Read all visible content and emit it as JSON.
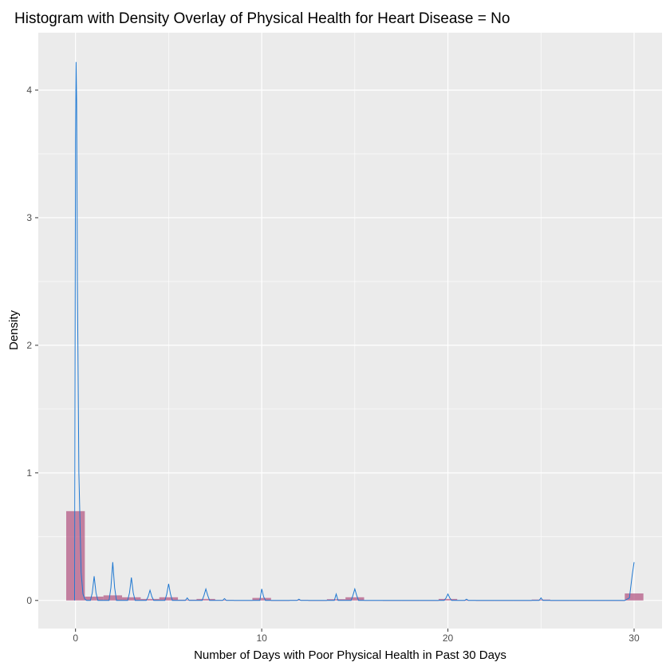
{
  "chart_data": {
    "type": "bar",
    "title": "Histogram with Density Overlay of Physical Health for Heart Disease = No",
    "xlabel": "Number of Days with Poor Physical Health in Past 30 Days",
    "ylabel": "Density",
    "xlim": [
      -2.0,
      31.5
    ],
    "ylim": [
      -0.22,
      4.45
    ],
    "x_ticks": [
      0,
      10,
      20,
      30
    ],
    "y_ticks": [
      0,
      1,
      2,
      3,
      4
    ],
    "grid": true,
    "legend": "none",
    "colors": {
      "panel": "#ebebeb",
      "grid_major": "#ffffff",
      "bar_fill": "#b0517f",
      "bar_fill_opacity": 0.7,
      "density_line": "#1f78d1",
      "tick_label": "#4d4d4d"
    },
    "histogram": {
      "bin_width": 1,
      "series": [
        {
          "bins": [
            {
              "x": 0,
              "density": 0.7
            },
            {
              "x": 1,
              "density": 0.03
            },
            {
              "x": 2,
              "density": 0.04
            },
            {
              "x": 3,
              "density": 0.025
            },
            {
              "x": 4,
              "density": 0.012
            },
            {
              "x": 5,
              "density": 0.025
            },
            {
              "x": 6,
              "density": 0.006
            },
            {
              "x": 7,
              "density": 0.012
            },
            {
              "x": 8,
              "density": 0.004
            },
            {
              "x": 9,
              "density": 0.002
            },
            {
              "x": 10,
              "density": 0.02
            },
            {
              "x": 11,
              "density": 0.001
            },
            {
              "x": 12,
              "density": 0.004
            },
            {
              "x": 13,
              "density": 0.001
            },
            {
              "x": 14,
              "density": 0.01
            },
            {
              "x": 15,
              "density": 0.025
            },
            {
              "x": 16,
              "density": 0.002
            },
            {
              "x": 17,
              "density": 0.001
            },
            {
              "x": 18,
              "density": 0.001
            },
            {
              "x": 19,
              "density": 0.001
            },
            {
              "x": 20,
              "density": 0.012
            },
            {
              "x": 21,
              "density": 0.003
            },
            {
              "x": 22,
              "density": 0.001
            },
            {
              "x": 23,
              "density": 0.001
            },
            {
              "x": 24,
              "density": 0.001
            },
            {
              "x": 25,
              "density": 0.007
            },
            {
              "x": 26,
              "density": 0.001
            },
            {
              "x": 27,
              "density": 0.001
            },
            {
              "x": 28,
              "density": 0.001
            },
            {
              "x": 29,
              "density": 0.001
            },
            {
              "x": 30,
              "density": 0.055
            }
          ]
        }
      ]
    },
    "density": {
      "points": [
        [
          -0.05,
          0.0
        ],
        [
          0.0,
          3.6
        ],
        [
          0.03,
          4.22
        ],
        [
          0.06,
          3.9
        ],
        [
          0.1,
          2.5
        ],
        [
          0.13,
          1.95
        ],
        [
          0.18,
          1.0
        ],
        [
          0.22,
          0.75
        ],
        [
          0.3,
          0.22
        ],
        [
          0.4,
          0.05
        ],
        [
          0.5,
          0.01
        ],
        [
          0.6,
          0.0
        ],
        [
          0.8,
          0.0
        ],
        [
          0.9,
          0.06
        ],
        [
          1.0,
          0.19
        ],
        [
          1.1,
          0.06
        ],
        [
          1.2,
          0.0
        ],
        [
          1.8,
          0.0
        ],
        [
          1.9,
          0.1
        ],
        [
          2.0,
          0.3
        ],
        [
          2.1,
          0.1
        ],
        [
          2.2,
          0.0
        ],
        [
          2.8,
          0.0
        ],
        [
          2.9,
          0.06
        ],
        [
          3.0,
          0.18
        ],
        [
          3.1,
          0.06
        ],
        [
          3.2,
          0.0
        ],
        [
          3.8,
          0.0
        ],
        [
          3.9,
          0.03
        ],
        [
          4.0,
          0.08
        ],
        [
          4.1,
          0.03
        ],
        [
          4.2,
          0.0
        ],
        [
          4.8,
          0.0
        ],
        [
          4.9,
          0.05
        ],
        [
          5.0,
          0.13
        ],
        [
          5.1,
          0.05
        ],
        [
          5.2,
          0.0
        ],
        [
          5.9,
          0.0
        ],
        [
          6.0,
          0.02
        ],
        [
          6.1,
          0.0
        ],
        [
          6.8,
          0.0
        ],
        [
          6.9,
          0.04
        ],
        [
          7.0,
          0.09
        ],
        [
          7.1,
          0.04
        ],
        [
          7.2,
          0.0
        ],
        [
          7.9,
          0.0
        ],
        [
          8.0,
          0.015
        ],
        [
          8.1,
          0.0
        ],
        [
          9.9,
          0.0
        ],
        [
          10.0,
          0.09
        ],
        [
          10.1,
          0.03
        ],
        [
          10.2,
          0.0
        ],
        [
          11.9,
          0.0
        ],
        [
          12.0,
          0.01
        ],
        [
          12.1,
          0.0
        ],
        [
          13.9,
          0.0
        ],
        [
          14.0,
          0.05
        ],
        [
          14.1,
          0.0
        ],
        [
          14.8,
          0.0
        ],
        [
          14.9,
          0.04
        ],
        [
          15.0,
          0.09
        ],
        [
          15.1,
          0.04
        ],
        [
          15.2,
          0.0
        ],
        [
          19.8,
          0.0
        ],
        [
          19.9,
          0.02
        ],
        [
          20.0,
          0.05
        ],
        [
          20.1,
          0.02
        ],
        [
          20.2,
          0.0
        ],
        [
          20.9,
          0.0
        ],
        [
          21.0,
          0.01
        ],
        [
          21.1,
          0.0
        ],
        [
          24.9,
          0.0
        ],
        [
          25.0,
          0.02
        ],
        [
          25.1,
          0.0
        ],
        [
          29.5,
          0.0
        ],
        [
          29.75,
          0.02
        ],
        [
          29.9,
          0.2
        ],
        [
          30.0,
          0.3
        ]
      ]
    }
  }
}
